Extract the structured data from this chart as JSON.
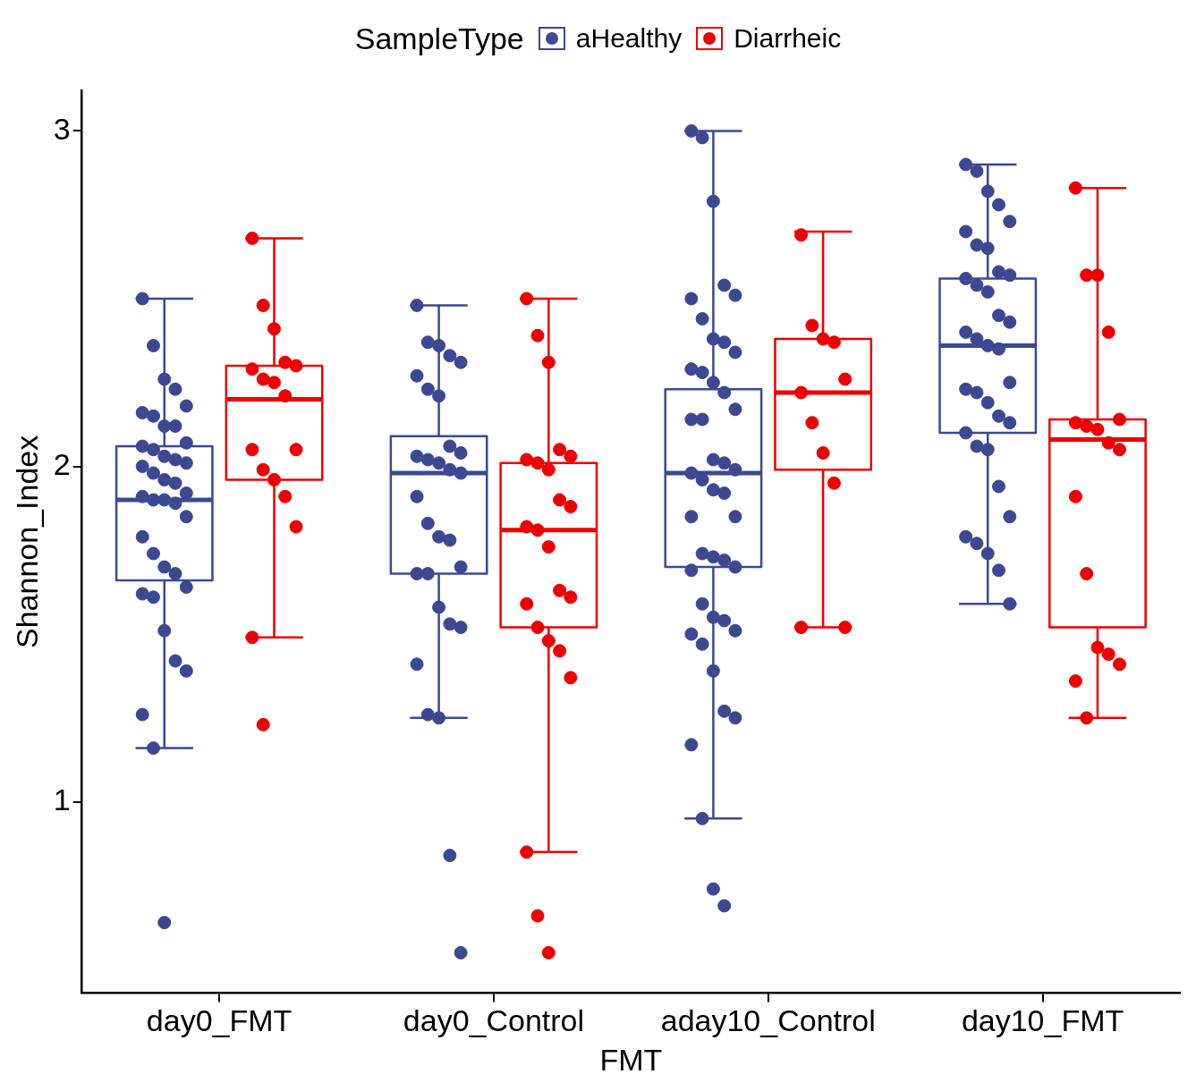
{
  "chart_data": {
    "type": "box",
    "xlabel": "FMT",
    "ylabel": "Shannon_Index",
    "legend_title": "SampleType",
    "legend": "top",
    "grid": false,
    "categories": [
      "day0_FMT",
      "day0_Control",
      "aday10_Control",
      "day10_FMT"
    ],
    "ylim": [
      0.43,
      3.12
    ],
    "yticks": [
      1,
      2,
      3
    ],
    "series": [
      {
        "name": "aHealthy",
        "color": "#3b4992",
        "boxes": [
          {
            "low": 1.16,
            "q1": 1.66,
            "median": 1.9,
            "q3": 2.06,
            "high": 2.5
          },
          {
            "low": 1.25,
            "q1": 1.68,
            "median": 1.98,
            "q3": 2.09,
            "high": 2.48
          },
          {
            "low": 0.95,
            "q1": 1.7,
            "median": 1.98,
            "q3": 2.23,
            "high": 3.0
          },
          {
            "low": 1.59,
            "q1": 2.1,
            "median": 2.36,
            "q3": 2.56,
            "high": 2.9
          }
        ]
      },
      {
        "name": "Diarrheic",
        "color": "#ee0000",
        "boxes": [
          {
            "low": 1.49,
            "q1": 1.96,
            "median": 2.2,
            "q3": 2.3,
            "high": 2.68
          },
          {
            "low": 0.85,
            "q1": 1.52,
            "median": 1.81,
            "q3": 2.01,
            "high": 2.5
          },
          {
            "low": 1.52,
            "q1": 1.99,
            "median": 2.22,
            "q3": 2.38,
            "high": 2.7
          },
          {
            "low": 1.25,
            "q1": 1.52,
            "median": 2.08,
            "q3": 2.14,
            "high": 2.83
          }
        ]
      },
      {
        "type": "scatter",
        "color": "#3b4992",
        "x": [
          "day0_FMT",
          "day0_FMT",
          "day0_FMT",
          "day0_FMT",
          "day0_FMT",
          "day0_FMT",
          "day0_FMT",
          "day0_FMT",
          "day0_FMT",
          "day0_FMT",
          "day0_FMT",
          "day0_FMT",
          "day0_FMT",
          "day0_FMT",
          "day0_FMT",
          "day0_FMT",
          "day0_FMT",
          "day0_FMT",
          "day0_FMT",
          "day0_FMT",
          "day0_FMT",
          "day0_FMT",
          "day0_FMT",
          "day0_FMT",
          "day0_FMT",
          "day0_FMT",
          "day0_FMT",
          "day0_FMT",
          "day0_FMT",
          "day0_FMT",
          "day0_FMT",
          "day0_FMT",
          "day0_FMT",
          "day0_FMT",
          "day0_FMT",
          "day0_FMT",
          "day0_FMT",
          "day0_FMT",
          "day0_Control",
          "day0_Control",
          "day0_Control",
          "day0_Control",
          "day0_Control",
          "day0_Control",
          "day0_Control",
          "day0_Control",
          "day0_Control",
          "day0_Control",
          "day0_Control",
          "day0_Control",
          "day0_Control",
          "day0_Control",
          "day0_Control",
          "day0_Control",
          "day0_Control",
          "day0_Control",
          "day0_Control",
          "day0_Control",
          "day0_Control",
          "day0_Control",
          "day0_Control",
          "day0_Control",
          "day0_Control",
          "day0_Control",
          "day0_Control",
          "day0_Control",
          "day0_Control",
          "day0_Control",
          "aday10_Control",
          "aday10_Control",
          "aday10_Control",
          "aday10_Control",
          "aday10_Control",
          "aday10_Control",
          "aday10_Control",
          "aday10_Control",
          "aday10_Control",
          "aday10_Control",
          "aday10_Control",
          "aday10_Control",
          "aday10_Control",
          "aday10_Control",
          "aday10_Control",
          "aday10_Control",
          "aday10_Control",
          "aday10_Control",
          "aday10_Control",
          "aday10_Control",
          "aday10_Control",
          "aday10_Control",
          "aday10_Control",
          "aday10_Control",
          "aday10_Control",
          "aday10_Control",
          "aday10_Control",
          "aday10_Control",
          "aday10_Control",
          "aday10_Control",
          "aday10_Control",
          "aday10_Control",
          "aday10_Control",
          "aday10_Control",
          "aday10_Control",
          "aday10_Control",
          "aday10_Control",
          "aday10_Control",
          "aday10_Control",
          "aday10_Control",
          "aday10_Control",
          "aday10_Control",
          "aday10_Control",
          "aday10_Control",
          "day10_FMT",
          "day10_FMT",
          "day10_FMT",
          "day10_FMT",
          "day10_FMT",
          "day10_FMT",
          "day10_FMT",
          "day10_FMT",
          "day10_FMT",
          "day10_FMT",
          "day10_FMT",
          "day10_FMT",
          "day10_FMT",
          "day10_FMT",
          "day10_FMT",
          "day10_FMT",
          "day10_FMT",
          "day10_FMT",
          "day10_FMT",
          "day10_FMT",
          "day10_FMT",
          "day10_FMT",
          "day10_FMT",
          "day10_FMT",
          "day10_FMT",
          "day10_FMT",
          "day10_FMT",
          "day10_FMT",
          "day10_FMT",
          "day10_FMT",
          "day10_FMT",
          "day10_FMT",
          "day10_FMT",
          "day10_FMT",
          "day10_FMT"
        ],
        "values": [
          2.5,
          2.36,
          2.26,
          2.23,
          2.18,
          2.16,
          2.15,
          2.12,
          2.12,
          2.07,
          2.06,
          2.05,
          2.03,
          2.02,
          2.01,
          2.0,
          1.98,
          1.96,
          1.95,
          1.92,
          1.91,
          1.9,
          1.9,
          1.89,
          1.85,
          1.79,
          1.74,
          1.7,
          1.68,
          1.64,
          1.62,
          1.61,
          1.51,
          1.42,
          1.39,
          1.26,
          1.16,
          0.64,
          2.48,
          2.37,
          2.36,
          2.33,
          2.31,
          2.27,
          2.23,
          2.21,
          2.06,
          2.04,
          2.03,
          2.02,
          2.01,
          1.99,
          1.98,
          1.91,
          1.83,
          1.79,
          1.78,
          1.7,
          1.68,
          1.68,
          1.58,
          1.53,
          1.52,
          1.41,
          1.26,
          1.25,
          0.84,
          0.55,
          3.0,
          2.98,
          2.79,
          2.54,
          2.51,
          2.5,
          2.44,
          2.38,
          2.37,
          2.34,
          2.29,
          2.28,
          2.25,
          2.22,
          2.17,
          2.14,
          2.14,
          2.02,
          2.01,
          1.99,
          1.98,
          1.96,
          1.93,
          1.92,
          1.85,
          1.85,
          1.74,
          1.73,
          1.72,
          1.7,
          1.69,
          1.59,
          1.55,
          1.54,
          1.51,
          1.5,
          1.47,
          1.39,
          1.27,
          1.25,
          1.17,
          0.95,
          0.74,
          0.69,
          2.9,
          2.88,
          2.82,
          2.78,
          2.73,
          2.7,
          2.66,
          2.65,
          2.58,
          2.57,
          2.56,
          2.54,
          2.52,
          2.45,
          2.43,
          2.4,
          2.38,
          2.36,
          2.35,
          2.25,
          2.23,
          2.22,
          2.19,
          2.15,
          2.13,
          2.1,
          2.06,
          2.05,
          1.94,
          1.85,
          1.79,
          1.77,
          1.74,
          1.69,
          1.59
        ]
      },
      {
        "type": "scatter",
        "color": "#ee0000",
        "x": [
          "day0_FMT",
          "day0_FMT",
          "day0_FMT",
          "day0_FMT",
          "day0_FMT",
          "day0_FMT",
          "day0_FMT",
          "day0_FMT",
          "day0_FMT",
          "day0_FMT",
          "day0_FMT",
          "day0_FMT",
          "day0_FMT",
          "day0_FMT",
          "day0_FMT",
          "day0_FMT",
          "day0_FMT",
          "day0_Control",
          "day0_Control",
          "day0_Control",
          "day0_Control",
          "day0_Control",
          "day0_Control",
          "day0_Control",
          "day0_Control",
          "day0_Control",
          "day0_Control",
          "day0_Control",
          "day0_Control",
          "day0_Control",
          "day0_Control",
          "day0_Control",
          "day0_Control",
          "day0_Control",
          "day0_Control",
          "day0_Control",
          "day0_Control",
          "day0_Control",
          "day0_Control",
          "day0_Control",
          "aday10_Control",
          "aday10_Control",
          "aday10_Control",
          "aday10_Control",
          "aday10_Control",
          "aday10_Control",
          "aday10_Control",
          "aday10_Control",
          "aday10_Control",
          "aday10_Control",
          "aday10_Control",
          "day10_FMT",
          "day10_FMT",
          "day10_FMT",
          "day10_FMT",
          "day10_FMT",
          "day10_FMT",
          "day10_FMT",
          "day10_FMT",
          "day10_FMT",
          "day10_FMT",
          "day10_FMT",
          "day10_FMT",
          "day10_FMT",
          "day10_FMT",
          "day10_FMT",
          "day10_FMT",
          "day10_FMT"
        ],
        "values": [
          2.68,
          2.48,
          2.41,
          2.31,
          2.3,
          2.29,
          2.26,
          2.25,
          2.21,
          2.05,
          2.05,
          1.99,
          1.96,
          1.91,
          1.82,
          1.49,
          1.23,
          2.5,
          2.39,
          2.31,
          2.05,
          2.03,
          2.02,
          2.01,
          1.99,
          1.9,
          1.88,
          1.82,
          1.81,
          1.76,
          1.63,
          1.61,
          1.59,
          1.52,
          1.48,
          1.45,
          1.37,
          0.85,
          0.66,
          0.55,
          2.69,
          2.42,
          2.38,
          2.37,
          2.26,
          2.22,
          2.13,
          2.04,
          1.95,
          1.52,
          1.52,
          2.83,
          2.57,
          2.57,
          2.4,
          2.14,
          2.13,
          2.12,
          2.11,
          2.07,
          2.05,
          1.91,
          1.68,
          1.46,
          1.44,
          1.41,
          1.36,
          1.25
        ]
      }
    ]
  }
}
